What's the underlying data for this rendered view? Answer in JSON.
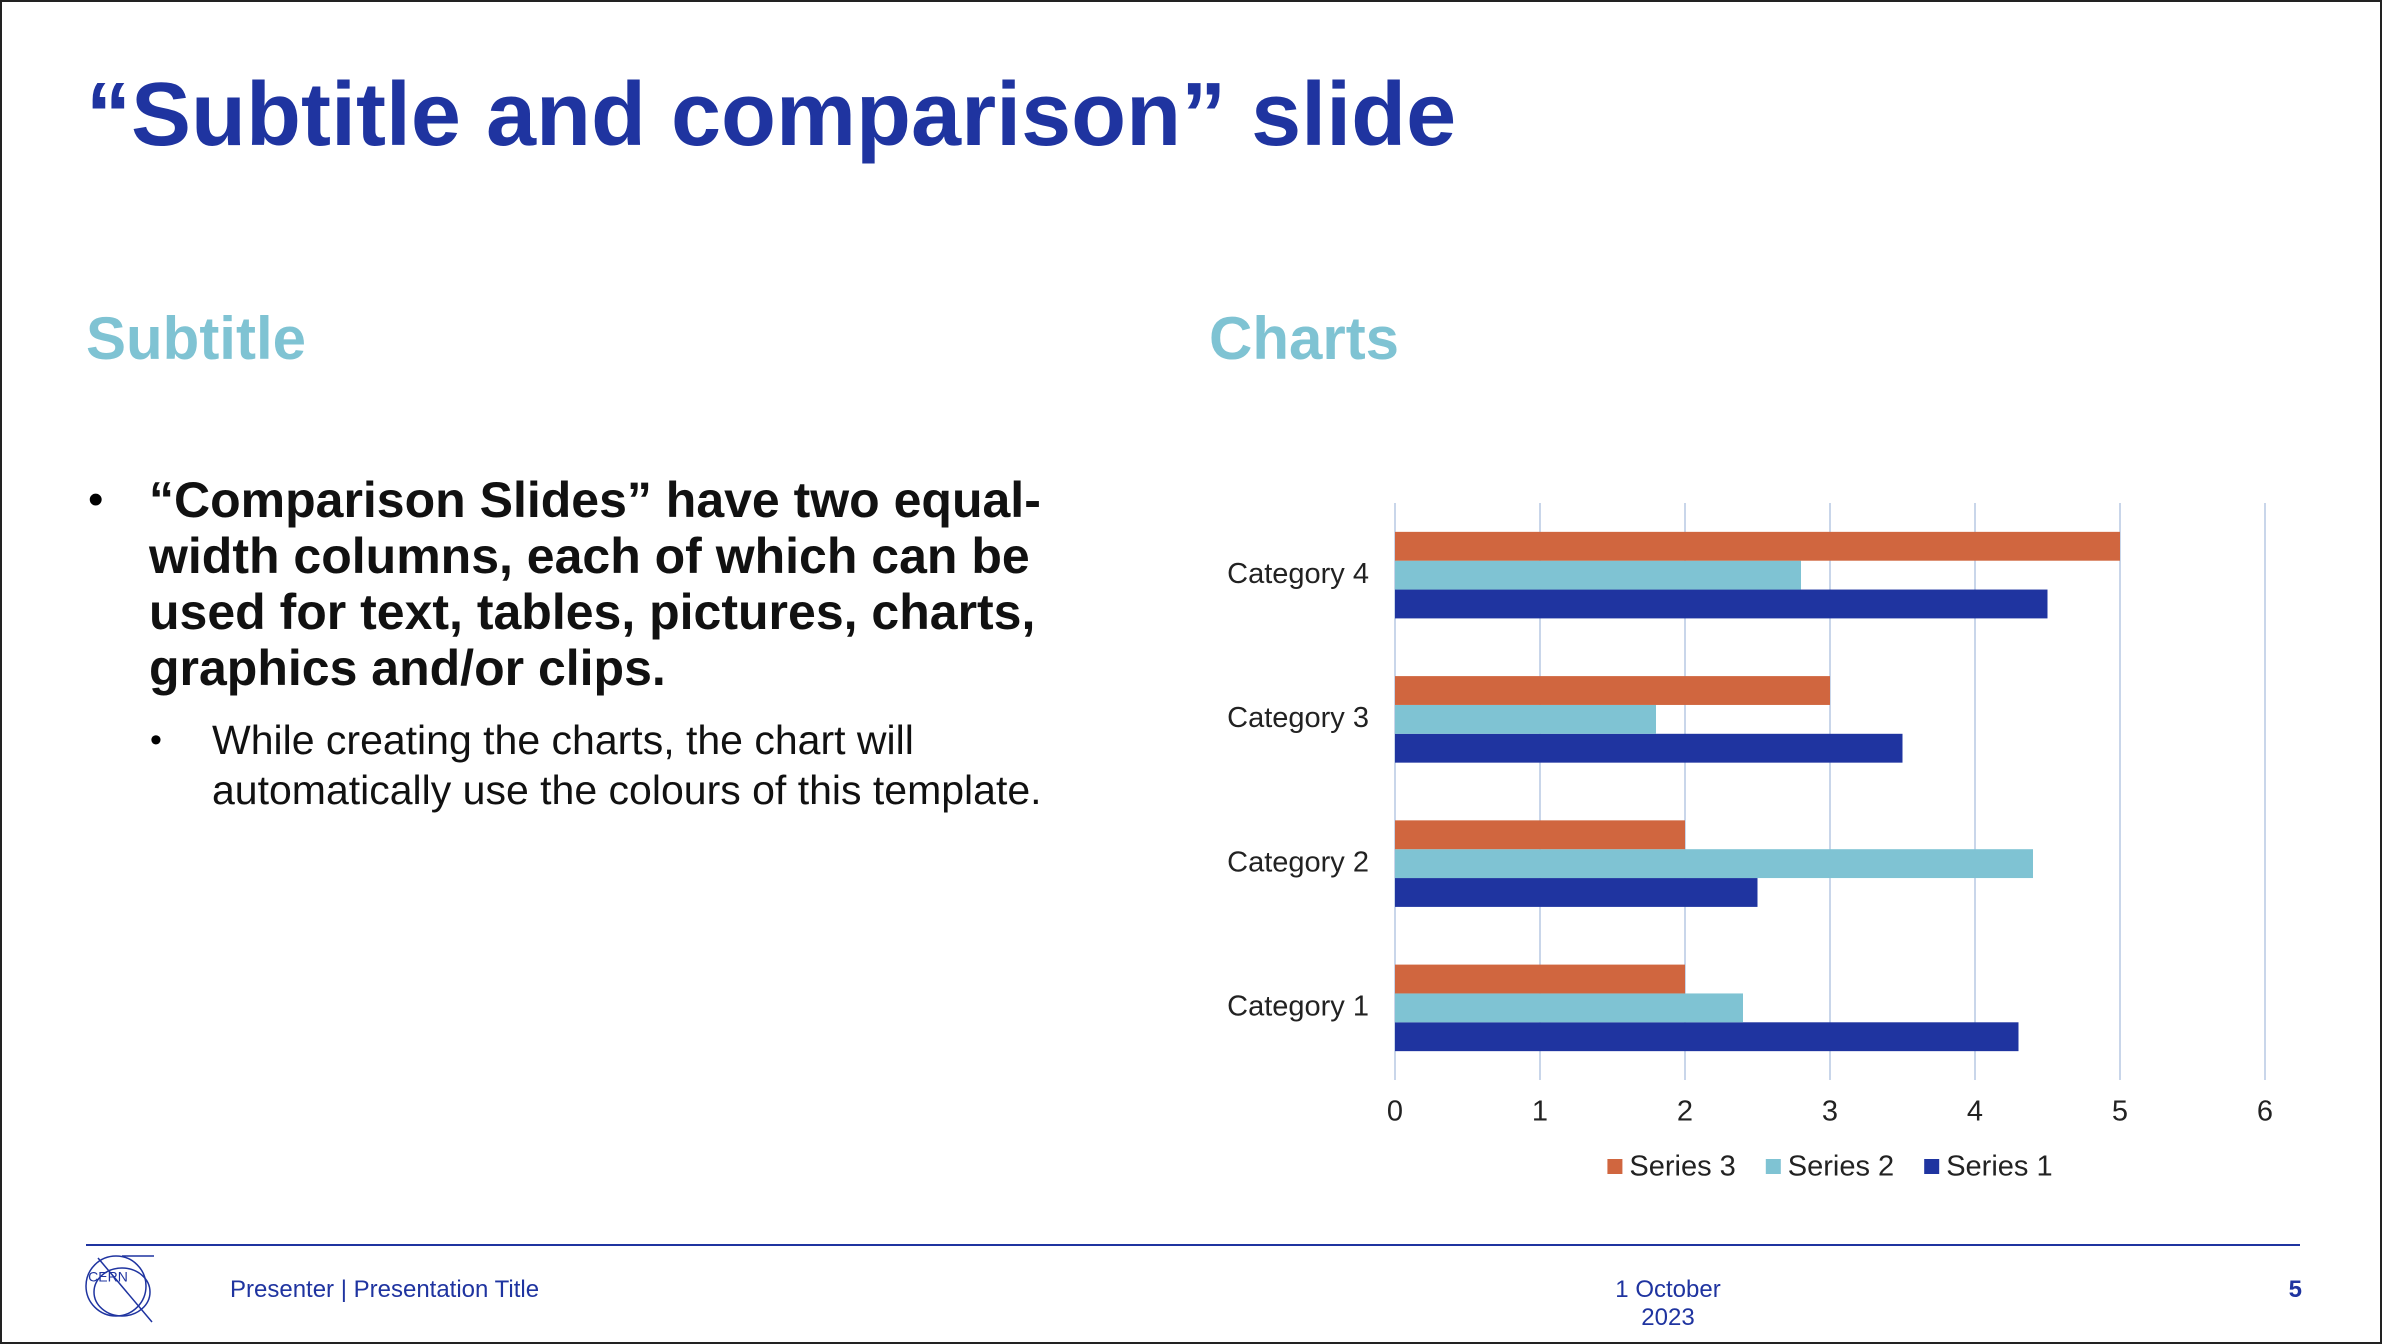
{
  "title": "“Subtitle and comparison” slide",
  "left": {
    "subtitle": "Subtitle",
    "bullet": "“Comparison Slides” have two equal-width columns, each of which can be used for text, tables, pictures, charts, graphics and/or clips.",
    "sub_bullet": "While creating the charts, the chart will automatically use the colours of this template."
  },
  "right": {
    "subtitle": "Charts"
  },
  "chart_data": {
    "type": "hbar",
    "categories": [
      "Category 1",
      "Category 2",
      "Category 3",
      "Category 4"
    ],
    "series": [
      {
        "name": "Series 1",
        "color": "#1f34a0",
        "values": [
          4.3,
          2.5,
          3.5,
          4.5
        ]
      },
      {
        "name": "Series 2",
        "color": "#7fc3d3",
        "values": [
          2.4,
          4.4,
          1.8,
          2.8
        ]
      },
      {
        "name": "Series 3",
        "color": "#d0663f",
        "values": [
          2,
          2,
          3,
          5
        ]
      }
    ],
    "xlim": [
      0,
      6
    ],
    "xticks": [
      0,
      1,
      2,
      3,
      4,
      5,
      6
    ],
    "grid": true,
    "legend": "bottom"
  },
  "footer": {
    "logo": "CERN",
    "left": "Presenter | Presentation Title",
    "date": "1 October 2023",
    "page": "5"
  }
}
